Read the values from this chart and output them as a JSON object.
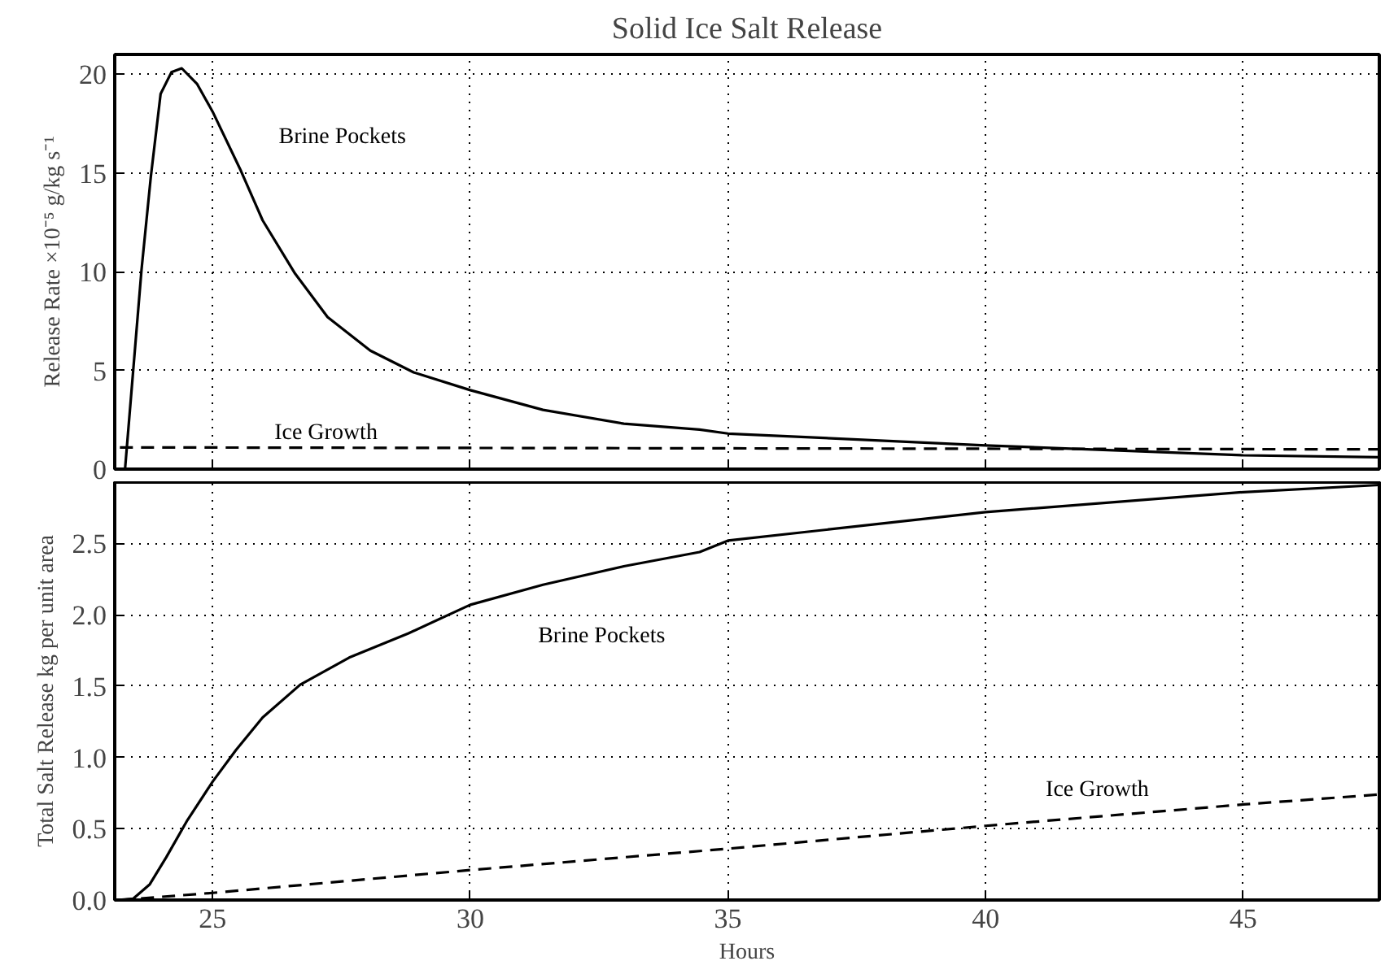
{
  "chart_data": [
    {
      "type": "line",
      "title": "Solid Ice Salt Release",
      "ylabel": "Release Rate ×10⁻⁵ g/kg s⁻¹",
      "xlim": [
        23.1,
        47.64
      ],
      "xticks": [
        25,
        30,
        35,
        40,
        45
      ],
      "ylim": [
        0,
        21
      ],
      "yticks": [
        0,
        5,
        10,
        15,
        20
      ],
      "tick_labels": "y",
      "grid": true,
      "series": [
        {
          "name": "Brine Pockets",
          "color": "#000000",
          "line_style": "solid",
          "x": [
            23.3,
            23.62,
            23.8,
            23.99,
            24.2,
            24.4,
            24.7,
            25,
            25.55,
            25.97,
            26.6,
            27.23,
            28.06,
            28.9,
            30,
            31.41,
            32.98,
            34.45,
            35,
            40,
            45,
            47.64
          ],
          "values": [
            0,
            10.1,
            14.8,
            19.0,
            20.1,
            20.3,
            19.5,
            18.1,
            15.1,
            12.6,
            9.9,
            7.7,
            6.0,
            4.9,
            4.0,
            3.0,
            2.3,
            2.0,
            1.8,
            1.2,
            0.7,
            0.6
          ]
        },
        {
          "name": "Ice Growth",
          "color": "#000000",
          "line_style": "dashed",
          "x": [
            23.2,
            47.64
          ],
          "values": [
            1.1,
            1.0
          ]
        }
      ]
    },
    {
      "type": "line",
      "xlabel": "Hours",
      "ylabel": "Total Salt Release kg per unit area",
      "xlim": [
        23.1,
        47.64
      ],
      "xticks": [
        25,
        30,
        35,
        40,
        45
      ],
      "ylim": [
        0,
        2.93
      ],
      "yticks": [
        {
          "value": 0,
          "label": "0.0"
        },
        {
          "value": 0.5,
          "label": "0.5"
        },
        {
          "value": 1,
          "label": "1.0"
        },
        {
          "value": 1.5,
          "label": "1.5"
        },
        {
          "value": 2,
          "label": "2.0"
        },
        {
          "value": 2.5,
          "label": "2.5"
        }
      ],
      "grid": true,
      "series": [
        {
          "name": "Brine Pockets",
          "color": "#000000",
          "line_style": "solid",
          "x": [
            23.15,
            23.46,
            23.78,
            24.1,
            24.51,
            25,
            25.45,
            25.97,
            26.7,
            27.65,
            28.8,
            30,
            31.41,
            32.98,
            34.45,
            35,
            40,
            45,
            47.64
          ],
          "values": [
            0,
            0.01,
            0.11,
            0.3,
            0.56,
            0.83,
            1.05,
            1.28,
            1.51,
            1.7,
            1.87,
            2.07,
            2.21,
            2.34,
            2.44,
            2.52,
            2.72,
            2.86,
            2.91
          ]
        },
        {
          "name": "Ice Growth",
          "color": "#000000",
          "line_style": "dashed",
          "x": [
            23.2,
            25,
            30,
            35,
            40,
            45,
            47.64
          ],
          "values": [
            0,
            0.05,
            0.21,
            0.36,
            0.52,
            0.67,
            0.74
          ]
        }
      ]
    }
  ]
}
